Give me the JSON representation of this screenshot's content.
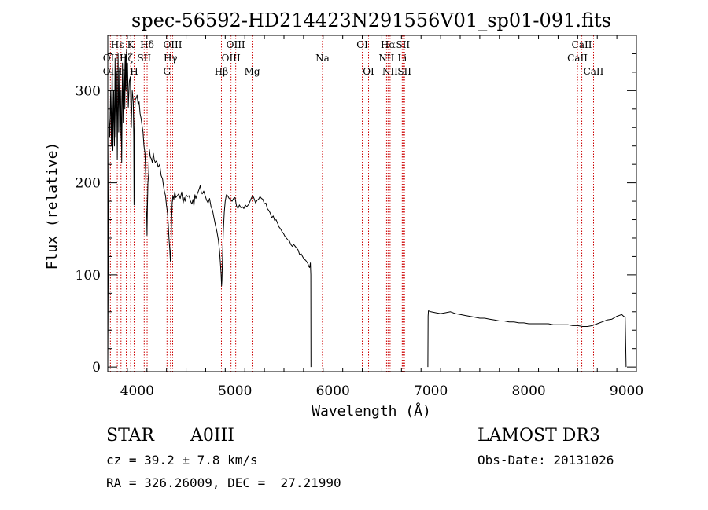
{
  "chart_data": {
    "type": "line",
    "title": "spec-56592-HD214423N291556V01_sp01-091.fits",
    "xlabel": "Wavelength (Å)",
    "ylabel": "Flux (relative)",
    "xlim": [
      3700,
      9100
    ],
    "ylim": [
      -5,
      360
    ],
    "xticks": [
      4000,
      5000,
      6000,
      7000,
      8000,
      9000
    ],
    "yticks": [
      0,
      100,
      200,
      300
    ],
    "colors": {
      "spectrum": "#000000",
      "lines": "#cc0000",
      "axes": "#000000"
    },
    "series": [
      {
        "name": "spectrum",
        "segments": [
          [
            [
              3700,
              0
            ],
            [
              3705,
              110
            ],
            [
              3712,
              270
            ],
            [
              3720,
              250
            ],
            [
              3730,
              300
            ],
            [
              3738,
              240
            ],
            [
              3745,
              330
            ],
            [
              3752,
              235
            ],
            [
              3760,
              300
            ],
            [
              3768,
              240
            ],
            [
              3775,
              335
            ],
            [
              3782,
              250
            ],
            [
              3790,
              320
            ],
            [
              3797,
              225
            ],
            [
              3805,
              340
            ],
            [
              3812,
              255
            ],
            [
              3820,
              325
            ],
            [
              3828,
              245
            ],
            [
              3835,
              300
            ],
            [
              3842,
              222
            ],
            [
              3850,
              330
            ],
            [
              3858,
              265
            ],
            [
              3866,
              340
            ],
            [
              3874,
              280
            ],
            [
              3880,
              338
            ],
            [
              3886,
              300
            ],
            [
              3892,
              345
            ],
            [
              3898,
              305
            ],
            [
              3902,
              330
            ],
            [
              3910,
              282
            ],
            [
              3920,
              310
            ],
            [
              3930,
              315
            ],
            [
              3940,
              260
            ],
            [
              3950,
              300
            ],
            [
              3960,
              288
            ],
            [
              3965,
              250
            ],
            [
              3968,
              176
            ],
            [
              3972,
              255
            ],
            [
              3980,
              290
            ],
            [
              3990,
              292
            ],
            [
              4000,
              295
            ],
            [
              4010,
              285
            ],
            [
              4020,
              288
            ],
            [
              4030,
              275
            ],
            [
              4040,
              270
            ],
            [
              4050,
              262
            ],
            [
              4060,
              255
            ],
            [
              4070,
              240
            ],
            [
              4080,
              232
            ],
            [
              4088,
              205
            ],
            [
              4094,
              170
            ],
            [
              4098,
              165
            ],
            [
              4101,
              143
            ],
            [
              4104,
              168
            ],
            [
              4110,
              200
            ],
            [
              4118,
              210
            ],
            [
              4125,
              236
            ],
            [
              4135,
              228
            ],
            [
              4145,
              226
            ],
            [
              4155,
              222
            ],
            [
              4165,
              232
            ],
            [
              4175,
              225
            ],
            [
              4185,
              222
            ],
            [
              4200,
              224
            ],
            [
              4215,
              217
            ],
            [
              4230,
              220
            ],
            [
              4245,
              208
            ],
            [
              4260,
              204
            ],
            [
              4270,
              196
            ],
            [
              4280,
              190
            ],
            [
              4290,
              186
            ],
            [
              4300,
              175
            ],
            [
              4310,
              168
            ],
            [
              4318,
              155
            ],
            [
              4325,
              140
            ],
            [
              4333,
              128
            ],
            [
              4340,
              115
            ],
            [
              4346,
              132
            ],
            [
              4352,
              158
            ],
            [
              4358,
              178
            ],
            [
              4365,
              186
            ],
            [
              4375,
              182
            ],
            [
              4385,
              190
            ],
            [
              4395,
              184
            ],
            [
              4410,
              186
            ],
            [
              4425,
              188
            ],
            [
              4440,
              183
            ],
            [
              4455,
              190
            ],
            [
              4470,
              178
            ],
            [
              4480,
              184
            ],
            [
              4490,
              180
            ],
            [
              4500,
              187
            ],
            [
              4515,
              185
            ],
            [
              4530,
              186
            ],
            [
              4545,
              180
            ],
            [
              4560,
              177
            ],
            [
              4570,
              182
            ],
            [
              4580,
              175
            ],
            [
              4590,
              187
            ],
            [
              4600,
              183
            ],
            [
              4615,
              188
            ],
            [
              4630,
              192
            ],
            [
              4645,
              197
            ],
            [
              4655,
              190
            ],
            [
              4665,
              188
            ],
            [
              4680,
              191
            ],
            [
              4695,
              186
            ],
            [
              4710,
              181
            ],
            [
              4725,
              178
            ],
            [
              4740,
              183
            ],
            [
              4755,
              174
            ],
            [
              4770,
              170
            ],
            [
              4785,
              162
            ],
            [
              4800,
              154
            ],
            [
              4815,
              147
            ],
            [
              4830,
              138
            ],
            [
              4842,
              126
            ],
            [
              4852,
              110
            ],
            [
              4858,
              100
            ],
            [
              4863,
              88
            ],
            [
              4866,
              94
            ],
            [
              4872,
              116
            ],
            [
              4880,
              146
            ],
            [
              4890,
              168
            ],
            [
              4900,
              180
            ],
            [
              4912,
              187
            ],
            [
              4925,
              186
            ],
            [
              4940,
              183
            ],
            [
              4955,
              182
            ],
            [
              4970,
              180
            ],
            [
              4985,
              183
            ],
            [
              5000,
              184
            ],
            [
              5015,
              175
            ],
            [
              5030,
              172
            ],
            [
              5045,
              176
            ],
            [
              5060,
              173
            ],
            [
              5075,
              174
            ],
            [
              5090,
              172
            ],
            [
              5105,
              176
            ],
            [
              5120,
              174
            ],
            [
              5135,
              176
            ],
            [
              5150,
              179
            ],
            [
              5165,
              183
            ],
            [
              5180,
              186
            ],
            [
              5195,
              183
            ],
            [
              5210,
              178
            ],
            [
              5225,
              181
            ],
            [
              5240,
              182
            ],
            [
              5255,
              185
            ],
            [
              5270,
              183
            ],
            [
              5285,
              182
            ],
            [
              5300,
              177
            ],
            [
              5315,
              178
            ],
            [
              5330,
              172
            ],
            [
              5345,
              170
            ],
            [
              5360,
              167
            ],
            [
              5375,
              162
            ],
            [
              5390,
              164
            ],
            [
              5405,
              159
            ],
            [
              5420,
              160
            ],
            [
              5435,
              156
            ],
            [
              5450,
              152
            ],
            [
              5465,
              150
            ],
            [
              5480,
              147
            ],
            [
              5495,
              145
            ],
            [
              5510,
              142
            ],
            [
              5525,
              140
            ],
            [
              5540,
              138
            ],
            [
              5555,
              137
            ],
            [
              5570,
              133
            ],
            [
              5585,
              131
            ],
            [
              5600,
              133
            ],
            [
              5615,
              131
            ],
            [
              5630,
              129
            ],
            [
              5645,
              127
            ],
            [
              5660,
              122
            ],
            [
              5675,
              123
            ],
            [
              5690,
              120
            ],
            [
              5705,
              117
            ],
            [
              5720,
              116
            ],
            [
              5735,
              114
            ],
            [
              5745,
              112
            ],
            [
              5755,
              109
            ],
            [
              5762,
              108
            ],
            [
              5770,
              113
            ],
            [
              5774,
              100
            ],
            [
              5776,
              0
            ]
          ],
          [
            [
              6970,
              0
            ],
            [
              6972,
              55
            ],
            [
              6975,
              61
            ],
            [
              7000,
              60
            ],
            [
              7050,
              59
            ],
            [
              7100,
              58
            ],
            [
              7150,
              59
            ],
            [
              7200,
              60
            ],
            [
              7250,
              58
            ],
            [
              7300,
              57
            ],
            [
              7350,
              56
            ],
            [
              7400,
              55
            ],
            [
              7450,
              54
            ],
            [
              7500,
              53
            ],
            [
              7550,
              53
            ],
            [
              7600,
              52
            ],
            [
              7650,
              51
            ],
            [
              7700,
              50
            ],
            [
              7750,
              50
            ],
            [
              7800,
              49
            ],
            [
              7850,
              49
            ],
            [
              7900,
              48
            ],
            [
              7950,
              48
            ],
            [
              8000,
              47
            ],
            [
              8050,
              47
            ],
            [
              8100,
              47
            ],
            [
              8150,
              47
            ],
            [
              8200,
              47
            ],
            [
              8250,
              46
            ],
            [
              8300,
              46
            ],
            [
              8350,
              46
            ],
            [
              8400,
              46
            ],
            [
              8450,
              45
            ],
            [
              8500,
              45
            ],
            [
              8550,
              44
            ],
            [
              8600,
              44
            ],
            [
              8650,
              45
            ],
            [
              8700,
              47
            ],
            [
              8750,
              49
            ],
            [
              8800,
              51
            ],
            [
              8850,
              52
            ],
            [
              8900,
              55
            ],
            [
              8950,
              57
            ],
            [
              8970,
              55
            ],
            [
              8985,
              54
            ],
            [
              8995,
              0
            ]
          ]
        ]
      }
    ],
    "annotations": [
      {
        "label": "Hε",
        "x": 3797,
        "row": 0
      },
      {
        "label": "OII",
        "x": 3727,
        "row": 1
      },
      {
        "label": "OII",
        "x": 3727,
        "row": 2
      },
      {
        "label": "Hζ",
        "x": 3889,
        "row": 1
      },
      {
        "label": "Hη",
        "x": 3835,
        "row": 2
      },
      {
        "label": "K",
        "x": 3934,
        "row": 0
      },
      {
        "label": "H",
        "x": 3969,
        "row": 2
      },
      {
        "label": "SII",
        "x": 4072,
        "row": 1
      },
      {
        "label": "Hδ",
        "x": 4102,
        "row": 0
      },
      {
        "label": "OIII",
        "x": 4363,
        "row": 0
      },
      {
        "label": "Hγ",
        "x": 4341,
        "row": 1
      },
      {
        "label": "G",
        "x": 4305,
        "row": 2
      },
      {
        "label": "OIII",
        "x": 5007,
        "row": 0
      },
      {
        "label": "OIII",
        "x": 4959,
        "row": 1
      },
      {
        "label": "Hβ",
        "x": 4861,
        "row": 2
      },
      {
        "label": "Mg",
        "x": 5175,
        "row": 2
      },
      {
        "label": "Na",
        "x": 5893,
        "row": 1
      },
      {
        "label": "OI",
        "x": 6300,
        "row": 0
      },
      {
        "label": "OI",
        "x": 6364,
        "row": 2
      },
      {
        "label": "Hα",
        "x": 6563,
        "row": 0
      },
      {
        "label": "NII",
        "x": 6548,
        "row": 1
      },
      {
        "label": "NII",
        "x": 6584,
        "row": 2
      },
      {
        "label": "SII",
        "x": 6716,
        "row": 0
      },
      {
        "label": "SII",
        "x": 6731,
        "row": 2
      },
      {
        "label": "Li",
        "x": 6708,
        "row": 1
      },
      {
        "label": "CaII",
        "x": 8542,
        "row": 0
      },
      {
        "label": "CaII",
        "x": 8498,
        "row": 1
      },
      {
        "label": "CaII",
        "x": 8662,
        "row": 2
      }
    ],
    "line_positions": [
      3727,
      3797,
      3835,
      3889,
      3934,
      3969,
      4072,
      4102,
      4305,
      4341,
      4363,
      4861,
      4959,
      5007,
      5175,
      5893,
      6300,
      6364,
      6548,
      6563,
      6584,
      6708,
      6716,
      6731,
      8498,
      8542,
      8662
    ]
  },
  "info": {
    "object_class": "STAR",
    "subclass": "A0III",
    "survey": "LAMOST DR3",
    "cz": "cz = 39.2 ± 7.8 km/s",
    "obs_date": "Obs-Date: 20131026",
    "coords": "RA = 326.26009, DEC =  27.21990"
  }
}
